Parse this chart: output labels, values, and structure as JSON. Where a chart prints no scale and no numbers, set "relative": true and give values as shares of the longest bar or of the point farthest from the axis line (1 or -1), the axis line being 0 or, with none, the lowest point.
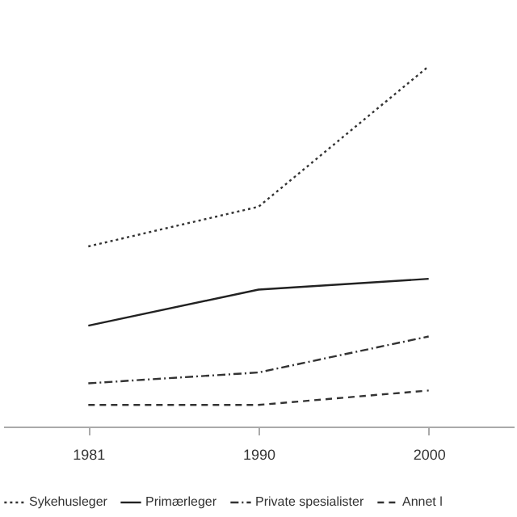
{
  "chart_data": {
    "type": "line",
    "relative": true,
    "categories": [
      "1981",
      "1990",
      "2000"
    ],
    "series": [
      {
        "name": "Sykehusleger",
        "color": "#333333",
        "line_style": "dotted",
        "values": [
          0.5,
          0.61,
          1
        ]
      },
      {
        "name": "Primærleger",
        "color": "#222222",
        "line_style": "solid",
        "values": [
          0.28,
          0.38,
          0.41
        ]
      },
      {
        "name": "Private spesialister",
        "color": "#333333",
        "line_style": "dashdot",
        "values": [
          0.12,
          0.15,
          0.25
        ]
      },
      {
        "name": "Annet l",
        "color": "#333333",
        "line_style": "dashed",
        "values": [
          0.06,
          0.06,
          0.1
        ]
      }
    ],
    "legend": "bottom",
    "grid": false,
    "marker": "none"
  }
}
